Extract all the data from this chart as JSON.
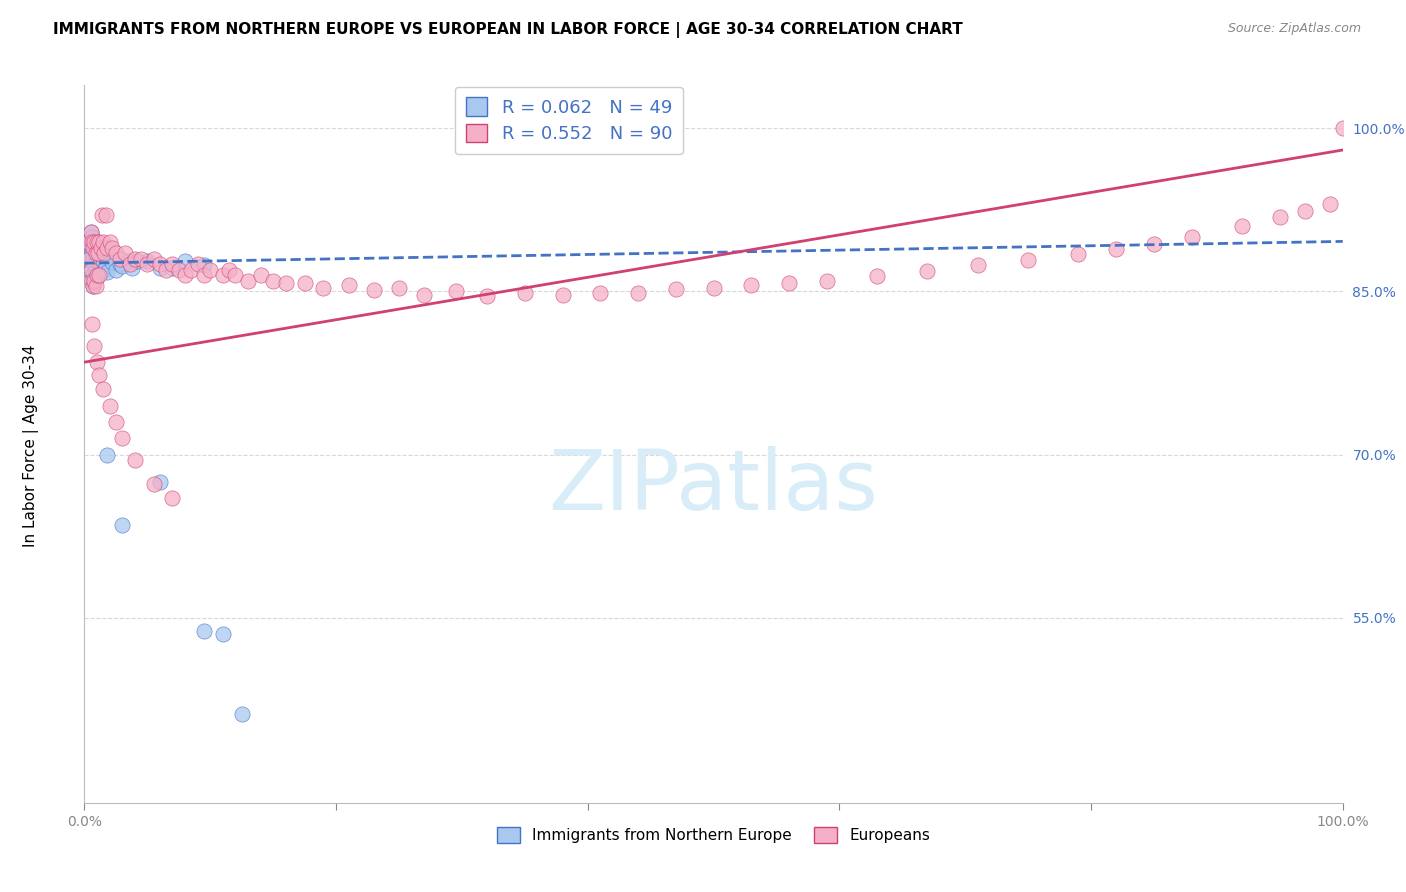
{
  "title": "IMMIGRANTS FROM NORTHERN EUROPE VS EUROPEAN IN LABOR FORCE | AGE 30-34 CORRELATION CHART",
  "source": "Source: ZipAtlas.com",
  "ylabel": "In Labor Force | Age 30-34",
  "legend_label_blue": "Immigrants from Northern Europe",
  "legend_label_pink": "Europeans",
  "R_blue": 0.062,
  "N_blue": 49,
  "R_pink": 0.552,
  "N_pink": 90,
  "xmin": 0.0,
  "xmax": 1.0,
  "ymin": 0.38,
  "ymax": 1.04,
  "yticks": [
    0.55,
    0.7,
    0.85,
    1.0
  ],
  "ytick_labels": [
    "55.0%",
    "70.0%",
    "85.0%",
    "100.0%"
  ],
  "color_blue": "#a8c8f0",
  "color_pink": "#f4b0c8",
  "trend_blue": "#4472c4",
  "trend_pink": "#d04070",
  "watermark_text": "ZIPatlas",
  "watermark_color": "#d8edf8",
  "background_color": "#ffffff",
  "grid_color": "#d8d8d8",
  "title_fontsize": 11,
  "tick_fontsize": 10,
  "legend_fontsize": 12,
  "source_fontsize": 9,
  "ylabel_fontsize": 11,
  "blue_x": [
    0.003,
    0.004,
    0.004,
    0.005,
    0.005,
    0.005,
    0.006,
    0.006,
    0.006,
    0.007,
    0.007,
    0.007,
    0.007,
    0.008,
    0.008,
    0.008,
    0.009,
    0.009,
    0.01,
    0.01,
    0.01,
    0.011,
    0.011,
    0.012,
    0.013,
    0.014,
    0.015,
    0.016,
    0.017,
    0.018,
    0.02,
    0.022,
    0.025,
    0.028,
    0.03,
    0.035,
    0.038,
    0.042,
    0.05,
    0.06,
    0.07,
    0.08,
    0.095,
    0.018,
    0.03,
    0.06,
    0.095,
    0.11,
    0.125
  ],
  "blue_y": [
    0.895,
    0.88,
    0.87,
    0.905,
    0.89,
    0.875,
    0.9,
    0.885,
    0.87,
    0.895,
    0.88,
    0.865,
    0.855,
    0.89,
    0.875,
    0.86,
    0.885,
    0.87,
    0.893,
    0.878,
    0.863,
    0.882,
    0.867,
    0.888,
    0.875,
    0.88,
    0.876,
    0.87,
    0.873,
    0.868,
    0.882,
    0.877,
    0.87,
    0.875,
    0.873,
    0.878,
    0.872,
    0.878,
    0.878,
    0.872,
    0.872,
    0.878,
    0.874,
    0.7,
    0.635,
    0.675,
    0.538,
    0.535,
    0.462
  ],
  "pink_x": [
    0.003,
    0.004,
    0.005,
    0.005,
    0.006,
    0.006,
    0.007,
    0.007,
    0.008,
    0.008,
    0.009,
    0.009,
    0.01,
    0.01,
    0.011,
    0.012,
    0.012,
    0.013,
    0.014,
    0.015,
    0.016,
    0.017,
    0.018,
    0.02,
    0.022,
    0.025,
    0.028,
    0.032,
    0.036,
    0.04,
    0.045,
    0.05,
    0.055,
    0.06,
    0.065,
    0.07,
    0.075,
    0.08,
    0.085,
    0.09,
    0.095,
    0.1,
    0.11,
    0.115,
    0.12,
    0.13,
    0.14,
    0.15,
    0.16,
    0.175,
    0.19,
    0.21,
    0.23,
    0.25,
    0.27,
    0.295,
    0.32,
    0.35,
    0.38,
    0.41,
    0.44,
    0.47,
    0.5,
    0.53,
    0.56,
    0.59,
    0.63,
    0.67,
    0.71,
    0.75,
    0.79,
    0.82,
    0.85,
    0.88,
    0.92,
    0.95,
    0.97,
    0.99,
    1.0,
    0.006,
    0.008,
    0.01,
    0.012,
    0.015,
    0.02,
    0.025,
    0.03,
    0.04,
    0.055,
    0.07
  ],
  "pink_y": [
    0.895,
    0.88,
    0.905,
    0.87,
    0.895,
    0.86,
    0.89,
    0.855,
    0.895,
    0.86,
    0.885,
    0.855,
    0.895,
    0.865,
    0.885,
    0.895,
    0.865,
    0.89,
    0.92,
    0.895,
    0.885,
    0.92,
    0.89,
    0.895,
    0.89,
    0.885,
    0.88,
    0.885,
    0.875,
    0.88,
    0.88,
    0.875,
    0.88,
    0.875,
    0.87,
    0.875,
    0.87,
    0.865,
    0.87,
    0.875,
    0.865,
    0.87,
    0.865,
    0.87,
    0.865,
    0.86,
    0.865,
    0.86,
    0.858,
    0.858,
    0.853,
    0.856,
    0.851,
    0.853,
    0.847,
    0.85,
    0.846,
    0.849,
    0.847,
    0.849,
    0.849,
    0.852,
    0.853,
    0.856,
    0.858,
    0.86,
    0.864,
    0.869,
    0.874,
    0.879,
    0.884,
    0.889,
    0.894,
    0.9,
    0.91,
    0.918,
    0.924,
    0.93,
    1.0,
    0.82,
    0.8,
    0.785,
    0.773,
    0.76,
    0.745,
    0.73,
    0.715,
    0.695,
    0.673,
    0.66
  ]
}
